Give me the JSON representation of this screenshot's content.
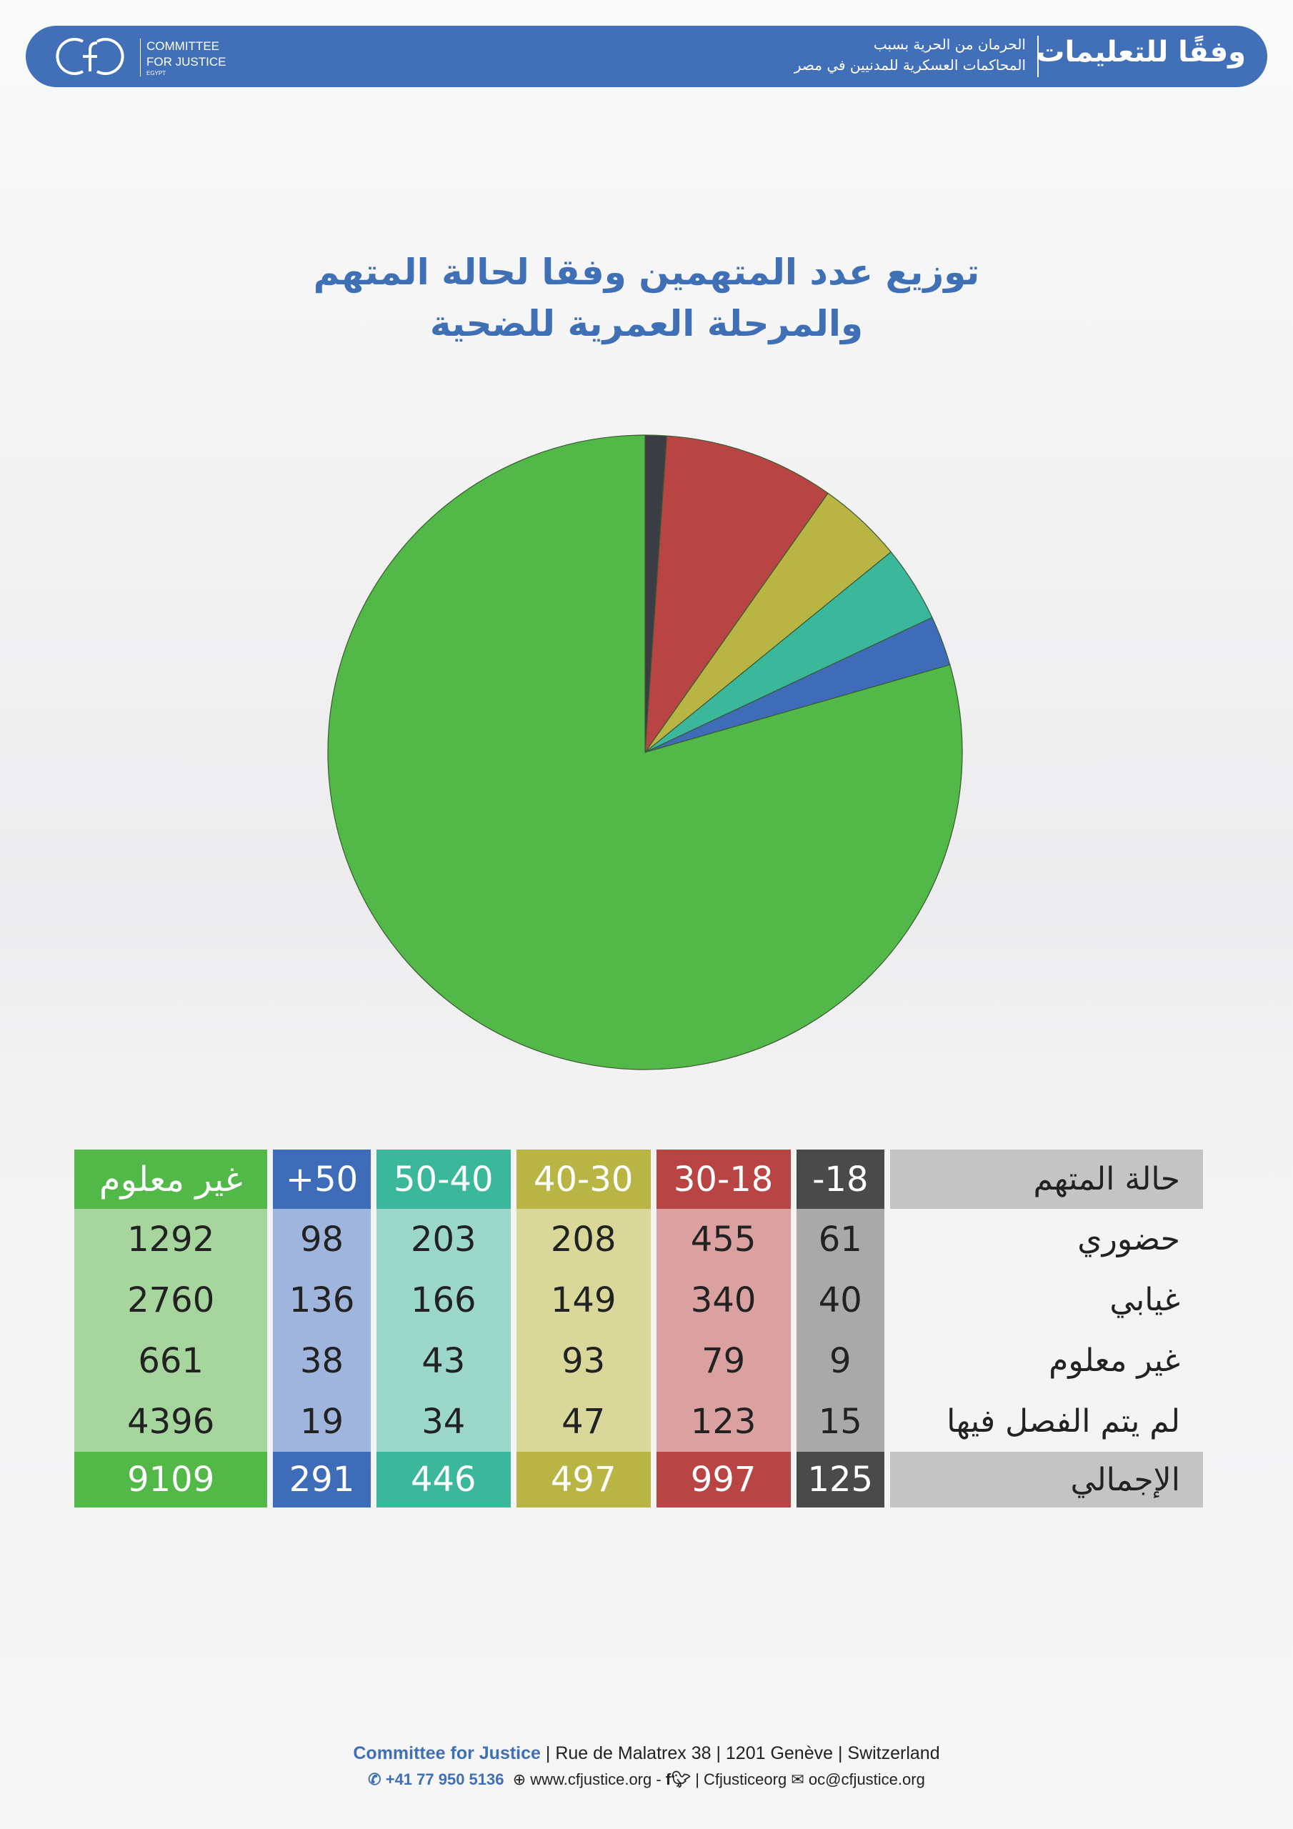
{
  "header": {
    "title": "وفقًا للتعليمات",
    "subtitle_line1": "الحرمان من الحرية بسبب",
    "subtitle_line2": "المحاكمات العسكرية للمدنيين في مصر",
    "logo_line1": "COMMITTEE",
    "logo_line2": "FOR JUSTICE",
    "logo_line3": "EGYPT"
  },
  "chart_data": {
    "type": "pie",
    "title": "توزيع عدد المتهمين وفقا لحالة المتهم والمرحلة العمرية للضحية",
    "title_line1": "توزيع عدد المتهمين وفقا لحالة المتهم",
    "title_line2": "والمرحلة العمرية للضحية",
    "categories": [
      "-18",
      "30-18",
      "40-30",
      "50-40",
      "+50",
      "غير معلوم"
    ],
    "values": [
      125,
      997,
      497,
      446,
      291,
      9109
    ],
    "colors": [
      "#3c3c44",
      "#b94444",
      "#b8b545",
      "#3bb89c",
      "#3f6cb8",
      "#52b848"
    ],
    "start": "top",
    "direction": "clockwise",
    "legend": "none"
  },
  "table": {
    "headers": [
      "حالة المتهم",
      "-18",
      "30-18",
      "40-30",
      "50-40",
      "+50",
      "غير معلوم"
    ],
    "header_colors": [
      "#4a4a4a",
      "#b94444",
      "#b8b545",
      "#3bb89c",
      "#3f6cb8",
      "#52b848"
    ],
    "body_colors": [
      "#a9a9a9",
      "#dba1a1",
      "#d9d79a",
      "#9bd8c9",
      "#9fb5dd",
      "#a6d69d"
    ],
    "rows": [
      {
        "label": "حضوري",
        "values": [
          "61",
          "455",
          "208",
          "203",
          "98",
          "1292"
        ]
      },
      {
        "label": "غيابي",
        "values": [
          "40",
          "340",
          "149",
          "166",
          "136",
          "2760"
        ]
      },
      {
        "label": "غير معلوم",
        "values": [
          "9",
          "79",
          "93",
          "43",
          "38",
          "661"
        ]
      },
      {
        "label": "لم يتم الفصل فيها",
        "values": [
          "15",
          "123",
          "47",
          "34",
          "19",
          "4396"
        ]
      }
    ],
    "total": {
      "label": "الإجمالي",
      "values": [
        "125",
        "997",
        "497",
        "446",
        "291",
        "9109"
      ]
    }
  },
  "footer": {
    "org": "Committee for Justice",
    "address": " | Rue de Malatrex 38 | 1201 Genève | Switzerland",
    "phone": "+41 77 950 5136",
    "website": "www.cfjustice.org -",
    "social": "| Cfjusticeorg",
    "email": "oc@cfjustice.org"
  }
}
